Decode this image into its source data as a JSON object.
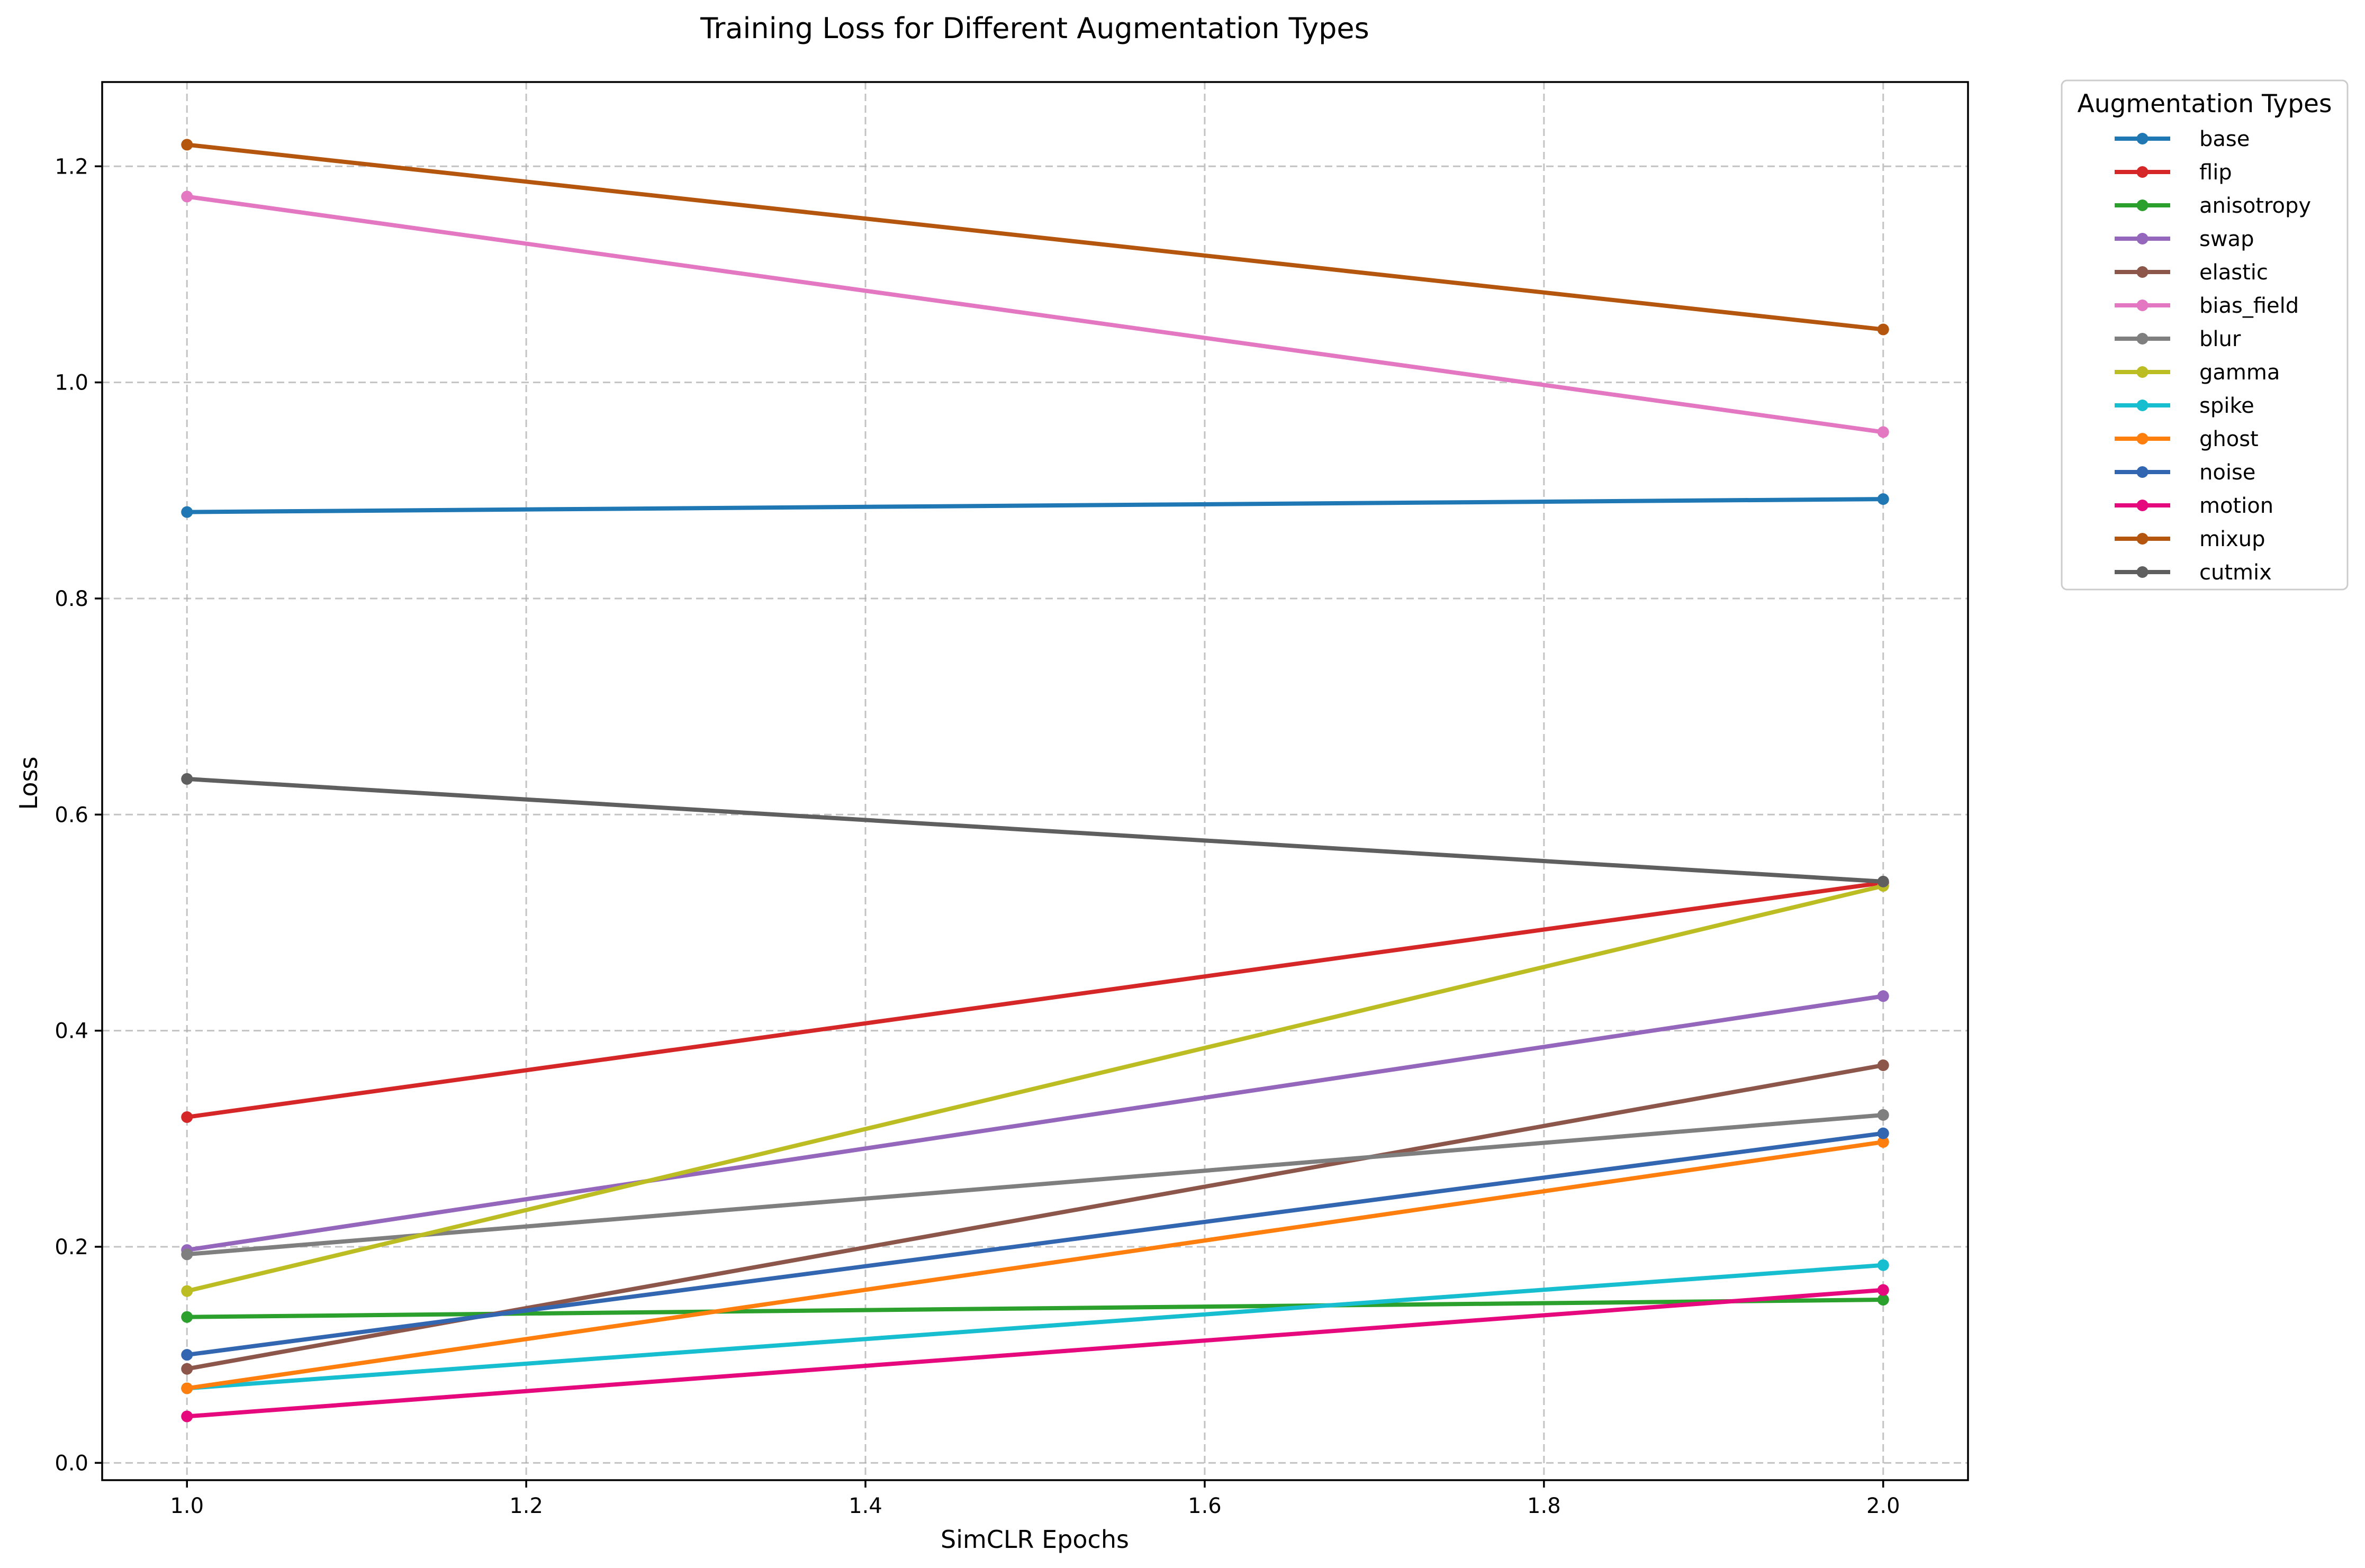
{
  "chart_data": {
    "type": "line",
    "title": "Training Loss for Different Augmentation Types",
    "xlabel": "SimCLR Epochs",
    "ylabel": "Loss",
    "x": [
      1.0,
      2.0
    ],
    "xlim": [
      0.95,
      2.05
    ],
    "ylim": [
      -0.016,
      1.278
    ],
    "xticks": [
      "1.0",
      "1.2",
      "1.4",
      "1.6",
      "1.8",
      "2.0"
    ],
    "xtick_values": [
      1.0,
      1.2,
      1.4,
      1.6,
      1.8,
      2.0
    ],
    "yticks": [
      "0.0",
      "0.2",
      "0.4",
      "0.6",
      "0.8",
      "1.0",
      "1.2"
    ],
    "ytick_values": [
      0.0,
      0.2,
      0.4,
      0.6,
      0.8,
      1.0,
      1.2
    ],
    "grid": true,
    "legend_title": "Augmentation Types",
    "legend_position": "outside-top-right",
    "series": [
      {
        "name": "base",
        "values": [
          0.88,
          0.892
        ],
        "color": "#1f77b4"
      },
      {
        "name": "flip",
        "values": [
          0.32,
          0.537
        ],
        "color": "#d62728"
      },
      {
        "name": "anisotropy",
        "values": [
          0.135,
          0.151
        ],
        "color": "#2ca02c"
      },
      {
        "name": "swap",
        "values": [
          0.197,
          0.432
        ],
        "color": "#9467bd"
      },
      {
        "name": "elastic",
        "values": [
          0.087,
          0.368
        ],
        "color": "#8c564b"
      },
      {
        "name": "bias_field",
        "values": [
          1.172,
          0.954
        ],
        "color": "#e377c2"
      },
      {
        "name": "blur",
        "values": [
          0.193,
          0.322
        ],
        "color": "#7f7f7f"
      },
      {
        "name": "gamma",
        "values": [
          0.159,
          0.534
        ],
        "color": "#bcbd22"
      },
      {
        "name": "spike",
        "values": [
          0.069,
          0.183
        ],
        "color": "#17becf"
      },
      {
        "name": "ghost",
        "values": [
          0.069,
          0.297
        ],
        "color": "#ff7f0e"
      },
      {
        "name": "noise",
        "values": [
          0.1,
          0.305
        ],
        "color": "#3366b0"
      },
      {
        "name": "motion",
        "values": [
          0.043,
          0.16
        ],
        "color": "#e6097d"
      },
      {
        "name": "mixup",
        "values": [
          1.22,
          1.049
        ],
        "color": "#b5560f"
      },
      {
        "name": "cutmix",
        "values": [
          0.633,
          0.538
        ],
        "color": "#5f5f5f"
      }
    ]
  }
}
